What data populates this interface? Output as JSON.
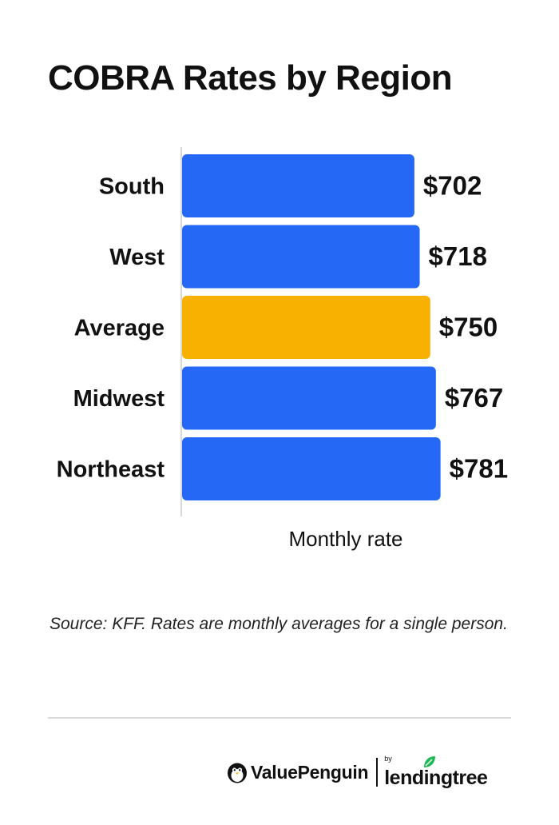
{
  "title": "COBRA Rates by Region",
  "chart_data": {
    "type": "bar",
    "orientation": "horizontal",
    "categories": [
      "South",
      "West",
      "Average",
      "Midwest",
      "Northeast"
    ],
    "values": [
      702,
      718,
      750,
      767,
      781
    ],
    "value_labels": [
      "$702",
      "$718",
      "$750",
      "$767",
      "$781"
    ],
    "bar_colors": [
      "#2468f5",
      "#2468f5",
      "#f8b100",
      "#2468f5",
      "#2468f5"
    ],
    "xlabel": "Monthly rate",
    "ylabel": "",
    "grid": false,
    "legend": "none"
  },
  "source_note": "Source: KFF. Rates are monthly averages for a single person.",
  "branding": {
    "valuepenguin": "ValuePenguin",
    "by": "by",
    "lendingtree": "lendingtree"
  },
  "colors": {
    "bar": "#2468f5",
    "highlight": "#f8b100",
    "text": "#111111",
    "leaf": "#1db954"
  },
  "icons": {
    "penguin": "penguin-icon",
    "leaf": "leaf-icon"
  }
}
